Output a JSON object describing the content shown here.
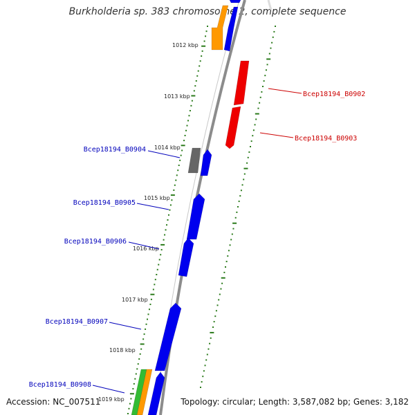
{
  "title": "Burkholderia sp. 383 chromosome 2, complete sequence",
  "footer": {
    "accession": "Accession: NC_007511",
    "info": "Topology: circular; Length: 3,587,082 bp; Genes: 3,182"
  },
  "ruler": [
    {
      "label": "1012 kbp"
    },
    {
      "label": "1013 kbp"
    },
    {
      "label": "1014 kbp"
    },
    {
      "label": "1015 kbp"
    },
    {
      "label": "1016 kbp"
    },
    {
      "label": "1017 kbp"
    },
    {
      "label": "1018 kbp"
    },
    {
      "label": "1019 kbp"
    }
  ],
  "gene_labels": [
    {
      "name": "Bcep18194_B0902",
      "strand": "+",
      "color": "#cc0000"
    },
    {
      "name": "Bcep18194_B0903",
      "strand": "+",
      "color": "#cc0000"
    },
    {
      "name": "Bcep18194_B0904",
      "strand": "-",
      "color": "#0000bb"
    },
    {
      "name": "Bcep18194_B0905",
      "strand": "-",
      "color": "#0000bb"
    },
    {
      "name": "Bcep18194_B0906",
      "strand": "-",
      "color": "#0000bb"
    },
    {
      "name": "Bcep18194_B0907",
      "strand": "-",
      "color": "#0000bb"
    },
    {
      "name": "Bcep18194_B0908",
      "strand": "-",
      "color": "#0000bb"
    }
  ],
  "colors": {
    "backbone": "#8c8c8c",
    "tick": "#2a7a1a",
    "forward_gene": "#ee0000",
    "reverse_gene": "#0000ee",
    "pseudo_gene": "#666666",
    "orange_feature": "#ff9900",
    "green_feature": "#33bb33"
  }
}
